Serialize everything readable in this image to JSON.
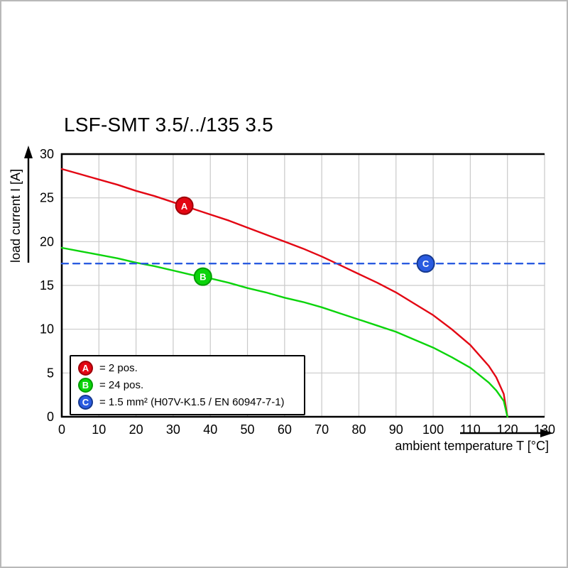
{
  "chart_data": {
    "type": "line",
    "title": "LSF-SMT 3.5/../135 3.5",
    "xlabel": "ambient temperature T [°C]",
    "ylabel": "load current I [A]",
    "xlim": [
      0,
      130
    ],
    "ylim": [
      0,
      30
    ],
    "x_ticks": [
      0,
      10,
      20,
      30,
      40,
      50,
      60,
      70,
      80,
      90,
      100,
      110,
      120,
      130
    ],
    "y_ticks": [
      0,
      5,
      10,
      15,
      20,
      25,
      30
    ],
    "grid": true,
    "grid_color": "#c9c9c9",
    "frame_color": "#000000",
    "legend_position": "lower-left",
    "series": [
      {
        "name": "A",
        "label": "= 2 pos.",
        "color": "#e30613",
        "dark_color": "#9e0009",
        "style": "solid",
        "points": [
          [
            0,
            28.3
          ],
          [
            5,
            27.7
          ],
          [
            10,
            27.1
          ],
          [
            15,
            26.5
          ],
          [
            20,
            25.8
          ],
          [
            25,
            25.2
          ],
          [
            30,
            24.5
          ],
          [
            35,
            23.8
          ],
          [
            40,
            23.1
          ],
          [
            45,
            22.4
          ],
          [
            50,
            21.6
          ],
          [
            55,
            20.8
          ],
          [
            60,
            20.0
          ],
          [
            65,
            19.2
          ],
          [
            70,
            18.3
          ],
          [
            75,
            17.3
          ],
          [
            80,
            16.3
          ],
          [
            85,
            15.3
          ],
          [
            90,
            14.2
          ],
          [
            95,
            12.9
          ],
          [
            100,
            11.6
          ],
          [
            105,
            10.0
          ],
          [
            110,
            8.2
          ],
          [
            115,
            5.8
          ],
          [
            117,
            4.5
          ],
          [
            119,
            2.6
          ],
          [
            120,
            0
          ]
        ]
      },
      {
        "name": "B",
        "label": "= 24 pos.",
        "color": "#0bd40b",
        "dark_color": "#009c00",
        "style": "solid",
        "points": [
          [
            0,
            19.3
          ],
          [
            5,
            18.9
          ],
          [
            10,
            18.5
          ],
          [
            15,
            18.1
          ],
          [
            20,
            17.6
          ],
          [
            25,
            17.2
          ],
          [
            30,
            16.7
          ],
          [
            35,
            16.2
          ],
          [
            40,
            15.8
          ],
          [
            45,
            15.3
          ],
          [
            50,
            14.7
          ],
          [
            55,
            14.2
          ],
          [
            60,
            13.6
          ],
          [
            65,
            13.1
          ],
          [
            70,
            12.5
          ],
          [
            75,
            11.8
          ],
          [
            80,
            11.1
          ],
          [
            85,
            10.4
          ],
          [
            90,
            9.7
          ],
          [
            95,
            8.8
          ],
          [
            100,
            7.9
          ],
          [
            105,
            6.8
          ],
          [
            110,
            5.6
          ],
          [
            115,
            3.9
          ],
          [
            117,
            3.0
          ],
          [
            119,
            1.8
          ],
          [
            120,
            0
          ]
        ]
      },
      {
        "name": "C",
        "label": "= 1.5 mm² (H07V-K1.5 / EN 60947-7-1)",
        "color": "#2a5be0",
        "dark_color": "#16398f",
        "style": "dashed",
        "points": [
          [
            0,
            17.5
          ],
          [
            130,
            17.5
          ]
        ]
      }
    ],
    "markers": [
      {
        "letter": "A",
        "x": 33,
        "y": 24.1
      },
      {
        "letter": "B",
        "x": 38,
        "y": 16.0
      },
      {
        "letter": "C",
        "x": 98,
        "y": 17.5
      }
    ]
  }
}
